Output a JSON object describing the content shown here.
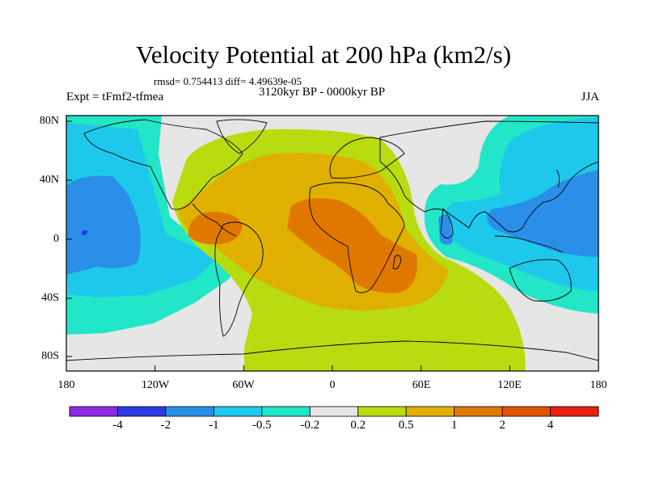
{
  "header": {
    "title": "Velocity Potential at 200 hPa (km2/s)",
    "stats": "rmsd= 0.754413 diff= 4.49639e-05",
    "experiment": "Expt = tFmf2-tfmea",
    "period": "3120kyr BP - 0000kyr BP",
    "season": "JJA"
  },
  "axes": {
    "x_ticks": [
      "180",
      "120W",
      "60W",
      "0",
      "60E",
      "120E",
      "180"
    ],
    "y_ticks": [
      "80N",
      "40N",
      "0",
      "40S",
      "80S"
    ]
  },
  "colorbar": {
    "labels": [
      "-4",
      "-2",
      "-1",
      "-0.5",
      "-0.2",
      "0.2",
      "0.5",
      "1",
      "2",
      "4"
    ],
    "colors": [
      "#8a2be2",
      "#2c3ce0",
      "#2a8fe8",
      "#1ec8ea",
      "#22e6c8",
      "#e6e6e6",
      "#b8dc10",
      "#e0b000",
      "#e07800",
      "#e25200",
      "#e82010"
    ]
  },
  "colors": {
    "land_outline": "#000000",
    "background": "#e6e6e6"
  }
}
